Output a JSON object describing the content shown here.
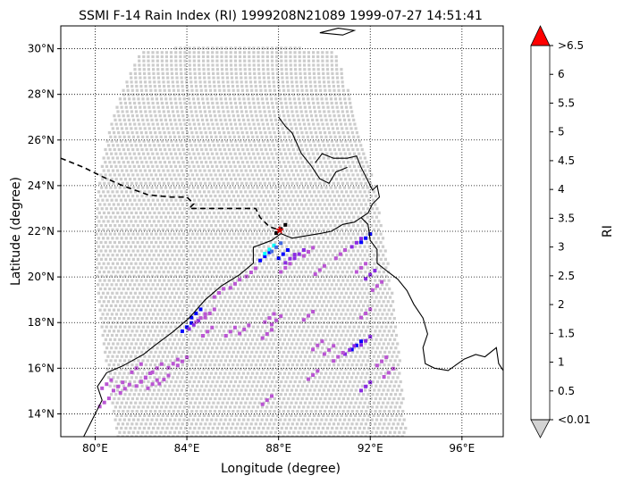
{
  "title": "SSMI F-14 Rain Index (RI) 1999208N21089 1999-07-27 14:51:41",
  "map": {
    "xlabel": "Longitude (degree)",
    "ylabel": "Latitude (degree)",
    "xlim": [
      78.5,
      97.8
    ],
    "ylim": [
      13.0,
      31.0
    ],
    "xticks": [
      {
        "v": 80,
        "label": "80°E"
      },
      {
        "v": 84,
        "label": "84°E"
      },
      {
        "v": 88,
        "label": "88°E"
      },
      {
        "v": 92,
        "label": "92°E"
      },
      {
        "v": 96,
        "label": "96°E"
      }
    ],
    "yticks": [
      {
        "v": 14,
        "label": "14°N"
      },
      {
        "v": 16,
        "label": "16°N"
      },
      {
        "v": 18,
        "label": "18°N"
      },
      {
        "v": 20,
        "label": "20°N"
      },
      {
        "v": 22,
        "label": "22°N"
      },
      {
        "v": 24,
        "label": "24°N"
      },
      {
        "v": 26,
        "label": "26°N"
      },
      {
        "v": 28,
        "label": "28°N"
      },
      {
        "v": 30,
        "label": "30°N"
      }
    ],
    "grid": true,
    "storm_center": {
      "lon": 88.05,
      "lat": 22.05,
      "color": "#cc0000"
    },
    "swath_color": "#cccccc",
    "coast_color": "#000000",
    "border_style": "dashed"
  },
  "colorbar": {
    "label": "RI",
    "ticks": [
      "<0.01",
      "0.5",
      "1",
      "1.5",
      "2",
      "2.5",
      "3",
      "3.5",
      "4",
      "4.5",
      "5",
      "5.5",
      "6",
      ">6.5"
    ],
    "colors": [
      "#ba55d3",
      "#8a2be2",
      "#0000ff",
      "#4169e1",
      "#00ffff",
      "#00ff00",
      "#7fff00",
      "#ffff00",
      "#ffa500",
      "#800000",
      "#000000",
      "#000000",
      "#000000"
    ],
    "over_color": "#ff0000",
    "under_color": "#d3d3d3"
  },
  "chart_data": {
    "type": "scatter",
    "series": [
      {
        "name": "RI",
        "points": [
          {
            "lon": 80.5,
            "lat": 15.3,
            "ri": 0.3
          },
          {
            "lon": 81.0,
            "lat": 15.2,
            "ri": 0.3
          },
          {
            "lon": 81.3,
            "lat": 15.1,
            "ri": 0.3
          },
          {
            "lon": 80.4,
            "lat": 14.5,
            "ri": 0.3
          },
          {
            "lon": 81.8,
            "lat": 16.0,
            "ri": 0.3
          },
          {
            "lon": 82.2,
            "lat": 15.6,
            "ri": 0.3
          },
          {
            "lon": 82.7,
            "lat": 16.0,
            "ri": 0.3
          },
          {
            "lon": 83.0,
            "lat": 15.5,
            "ri": 0.3
          },
          {
            "lon": 83.4,
            "lat": 16.2,
            "ri": 0.3
          },
          {
            "lon": 83.8,
            "lat": 16.3,
            "ri": 0.3
          },
          {
            "lon": 82.0,
            "lat": 15.4,
            "ri": 0.3
          },
          {
            "lon": 82.5,
            "lat": 15.3,
            "ri": 0.3
          },
          {
            "lon": 84.0,
            "lat": 17.8,
            "ri": 1.2
          },
          {
            "lon": 84.3,
            "lat": 17.9,
            "ri": 0.7
          },
          {
            "lon": 84.6,
            "lat": 18.2,
            "ri": 0.3
          },
          {
            "lon": 84.4,
            "lat": 18.4,
            "ri": 1.3
          },
          {
            "lon": 85.0,
            "lat": 18.4,
            "ri": 0.3
          },
          {
            "lon": 84.9,
            "lat": 17.6,
            "ri": 0.3
          },
          {
            "lon": 85.4,
            "lat": 19.3,
            "ri": 0.3
          },
          {
            "lon": 86.1,
            "lat": 19.7,
            "ri": 0.3
          },
          {
            "lon": 85.9,
            "lat": 17.6,
            "ri": 0.3
          },
          {
            "lon": 86.5,
            "lat": 17.7,
            "ri": 0.3
          },
          {
            "lon": 87.6,
            "lat": 18.2,
            "ri": 0.3
          },
          {
            "lon": 87.9,
            "lat": 18.1,
            "ri": 0.3
          },
          {
            "lon": 87.5,
            "lat": 17.5,
            "ri": 0.3
          },
          {
            "lon": 89.3,
            "lat": 18.3,
            "ri": 0.3
          },
          {
            "lon": 87.4,
            "lat": 20.9,
            "ri": 1.3
          },
          {
            "lon": 87.6,
            "lat": 21.2,
            "ri": 2.3
          },
          {
            "lon": 87.9,
            "lat": 21.3,
            "ri": 1.7
          },
          {
            "lon": 88.2,
            "lat": 21.0,
            "ri": 1.3
          },
          {
            "lon": 88.5,
            "lat": 20.8,
            "ri": 0.7
          },
          {
            "lon": 88.9,
            "lat": 21.0,
            "ri": 0.7
          },
          {
            "lon": 89.3,
            "lat": 21.1,
            "ri": 0.3
          },
          {
            "lon": 89.8,
            "lat": 20.3,
            "ri": 0.3
          },
          {
            "lon": 86.8,
            "lat": 20.2,
            "ri": 0.3
          },
          {
            "lon": 88.3,
            "lat": 20.4,
            "ri": 0.3
          },
          {
            "lon": 89.7,
            "lat": 17.0,
            "ri": 0.3
          },
          {
            "lon": 90.2,
            "lat": 16.8,
            "ri": 0.3
          },
          {
            "lon": 91.8,
            "lat": 21.7,
            "ri": 1.3
          },
          {
            "lon": 91.4,
            "lat": 21.5,
            "ri": 0.7
          },
          {
            "lon": 90.7,
            "lat": 21.0,
            "ri": 0.3
          },
          {
            "lon": 91.6,
            "lat": 20.4,
            "ri": 0.3
          },
          {
            "lon": 92.0,
            "lat": 20.1,
            "ri": 0.7
          },
          {
            "lon": 92.3,
            "lat": 19.6,
            "ri": 0.3
          },
          {
            "lon": 91.8,
            "lat": 18.4,
            "ri": 0.3
          },
          {
            "lon": 91.4,
            "lat": 17.0,
            "ri": 1.3
          },
          {
            "lon": 91.8,
            "lat": 17.2,
            "ri": 0.7
          },
          {
            "lon": 91.1,
            "lat": 16.8,
            "ri": 0.7
          },
          {
            "lon": 90.6,
            "lat": 16.5,
            "ri": 0.3
          },
          {
            "lon": 92.5,
            "lat": 16.3,
            "ri": 0.3
          },
          {
            "lon": 92.8,
            "lat": 15.8,
            "ri": 0.3
          },
          {
            "lon": 91.8,
            "lat": 15.2,
            "ri": 0.7
          },
          {
            "lon": 89.5,
            "lat": 15.7,
            "ri": 0.3
          },
          {
            "lon": 87.5,
            "lat": 14.6,
            "ri": 0.3
          },
          {
            "lon": 88.1,
            "lat": 22.1,
            "ri": 5.2
          }
        ]
      }
    ]
  }
}
